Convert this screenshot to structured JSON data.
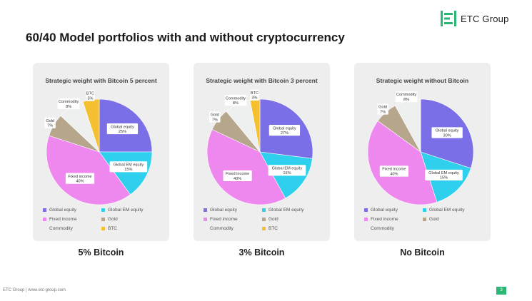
{
  "brand": {
    "name": "ETC Group",
    "color": "#2bb673"
  },
  "title": "60/40 Model portfolios with and without cryptocurrency",
  "footer": {
    "text": "ETC Group | www.etc-group.com",
    "page": "3"
  },
  "colors": {
    "Global equity": "#7b6fe8",
    "Global EM equity": "#2ed0ee",
    "Fixed income": "#ee88ee",
    "Gold": "#b5a68c",
    "Commodity": "#eef0f0",
    "BTC": "#f5c02f"
  },
  "chart_data": [
    {
      "type": "pie",
      "title": "Strategic weight with Bitcoin 5 percent",
      "caption": "5% Bitcoin",
      "legend_position": "bottom",
      "slices": [
        {
          "name": "Global equity",
          "value": 25,
          "label": "Global equity 25%"
        },
        {
          "name": "Global EM equity",
          "value": 15,
          "label": "Global EM equity 15%"
        },
        {
          "name": "Fixed income",
          "value": 40,
          "label": "Fixed income 40%"
        },
        {
          "name": "Gold",
          "value": 7,
          "label": "Gold 7%"
        },
        {
          "name": "Commodity",
          "value": 8,
          "label": "Commodity 8%"
        },
        {
          "name": "BTC",
          "value": 5,
          "label": "BTC 5%"
        }
      ],
      "legend": [
        "Global equity",
        "Global EM equity",
        "Fixed income",
        "Gold",
        "Commodity",
        "BTC"
      ]
    },
    {
      "type": "pie",
      "title": "Strategic weight with Bitcoin 3 percent",
      "caption": "3% Bitcoin",
      "legend_position": "bottom",
      "slices": [
        {
          "name": "Global equity",
          "value": 27,
          "label": "Global equity 27%"
        },
        {
          "name": "Global EM equity",
          "value": 15,
          "label": "Global EM equity 15%"
        },
        {
          "name": "Fixed income",
          "value": 40,
          "label": "Fixed income 40%"
        },
        {
          "name": "Gold",
          "value": 7,
          "label": "Gold 7%"
        },
        {
          "name": "Commodity",
          "value": 8,
          "label": "Commodity 8%"
        },
        {
          "name": "BTC",
          "value": 3,
          "label": "BTC 3%"
        }
      ],
      "legend": [
        "Global equity",
        "Global EM equity",
        "Fixed income",
        "Gold",
        "Commodity",
        "BTC"
      ]
    },
    {
      "type": "pie",
      "title": "Strategic weight without Bitcoin",
      "caption": "No Bitcoin",
      "legend_position": "bottom",
      "slices": [
        {
          "name": "Global equity",
          "value": 30,
          "label": "Global equity 30%"
        },
        {
          "name": "Global EM equity",
          "value": 15,
          "label": "Global EM equity 15%"
        },
        {
          "name": "Fixed income",
          "value": 40,
          "label": "Fixed income 40%"
        },
        {
          "name": "Gold",
          "value": 7,
          "label": "Gold 7%"
        },
        {
          "name": "Commodity",
          "value": 8,
          "label": "Commodity 8%"
        }
      ],
      "legend": [
        "Global equity",
        "Global EM equity",
        "Fixed income",
        "Gold",
        "Commodity"
      ]
    }
  ]
}
